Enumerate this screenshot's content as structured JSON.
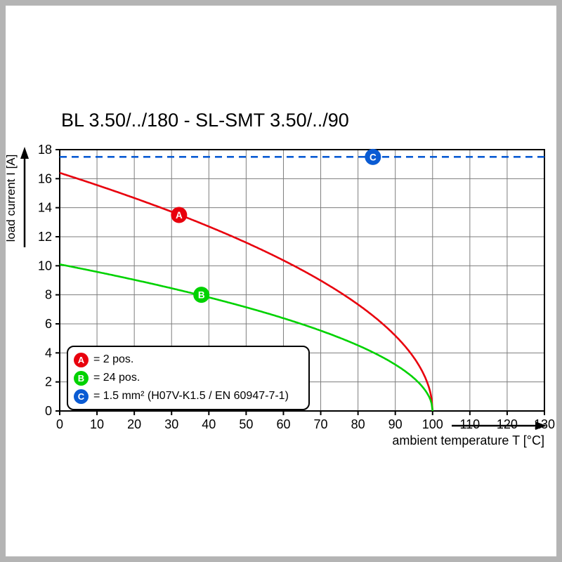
{
  "chart_data": {
    "type": "line",
    "title": "BL 3.50/../180 - SL-SMT 3.50/../90",
    "xlabel": "ambient temperature T [°C]",
    "ylabel": "load current I [A]",
    "xlim": [
      0,
      130
    ],
    "ylim": [
      0,
      18
    ],
    "x_ticks": [
      0,
      10,
      20,
      30,
      40,
      50,
      60,
      70,
      80,
      90,
      100,
      110,
      120,
      130
    ],
    "y_ticks": [
      0,
      2,
      4,
      6,
      8,
      10,
      12,
      14,
      16,
      18
    ],
    "grid": true,
    "legend_position": "bottom-left",
    "series": [
      {
        "name": "A",
        "label": "= 2 pos.",
        "color": "#e8000d",
        "kind": "derating-curve",
        "i0": 16.4,
        "t_max": 100,
        "points": [
          [
            0,
            16.4
          ],
          [
            10,
            15.6
          ],
          [
            20,
            14.7
          ],
          [
            30,
            13.7
          ],
          [
            40,
            12.7
          ],
          [
            50,
            11.6
          ],
          [
            60,
            10.4
          ],
          [
            70,
            9.0
          ],
          [
            80,
            7.3
          ],
          [
            90,
            5.2
          ],
          [
            95,
            3.7
          ],
          [
            100,
            0
          ]
        ],
        "marker": {
          "t": 32,
          "i": 13.5
        }
      },
      {
        "name": "B",
        "label": "= 24 pos.",
        "color": "#00d200",
        "kind": "derating-curve",
        "i0": 10.1,
        "t_max": 100,
        "points": [
          [
            0,
            10.1
          ],
          [
            10,
            9.6
          ],
          [
            20,
            9.0
          ],
          [
            30,
            8.5
          ],
          [
            40,
            7.8
          ],
          [
            50,
            7.1
          ],
          [
            60,
            6.4
          ],
          [
            70,
            5.5
          ],
          [
            80,
            4.5
          ],
          [
            90,
            3.2
          ],
          [
            95,
            2.3
          ],
          [
            100,
            0
          ]
        ],
        "marker": {
          "t": 38,
          "i": 8.0
        }
      },
      {
        "name": "C",
        "label": "= 1.5 mm² (H07V-K1.5 / EN 60947-7-1)",
        "color": "#0a5bd3",
        "kind": "limit",
        "value": 17.5,
        "dashed": true,
        "marker": {
          "t": 84,
          "i": 17.5
        }
      }
    ]
  }
}
